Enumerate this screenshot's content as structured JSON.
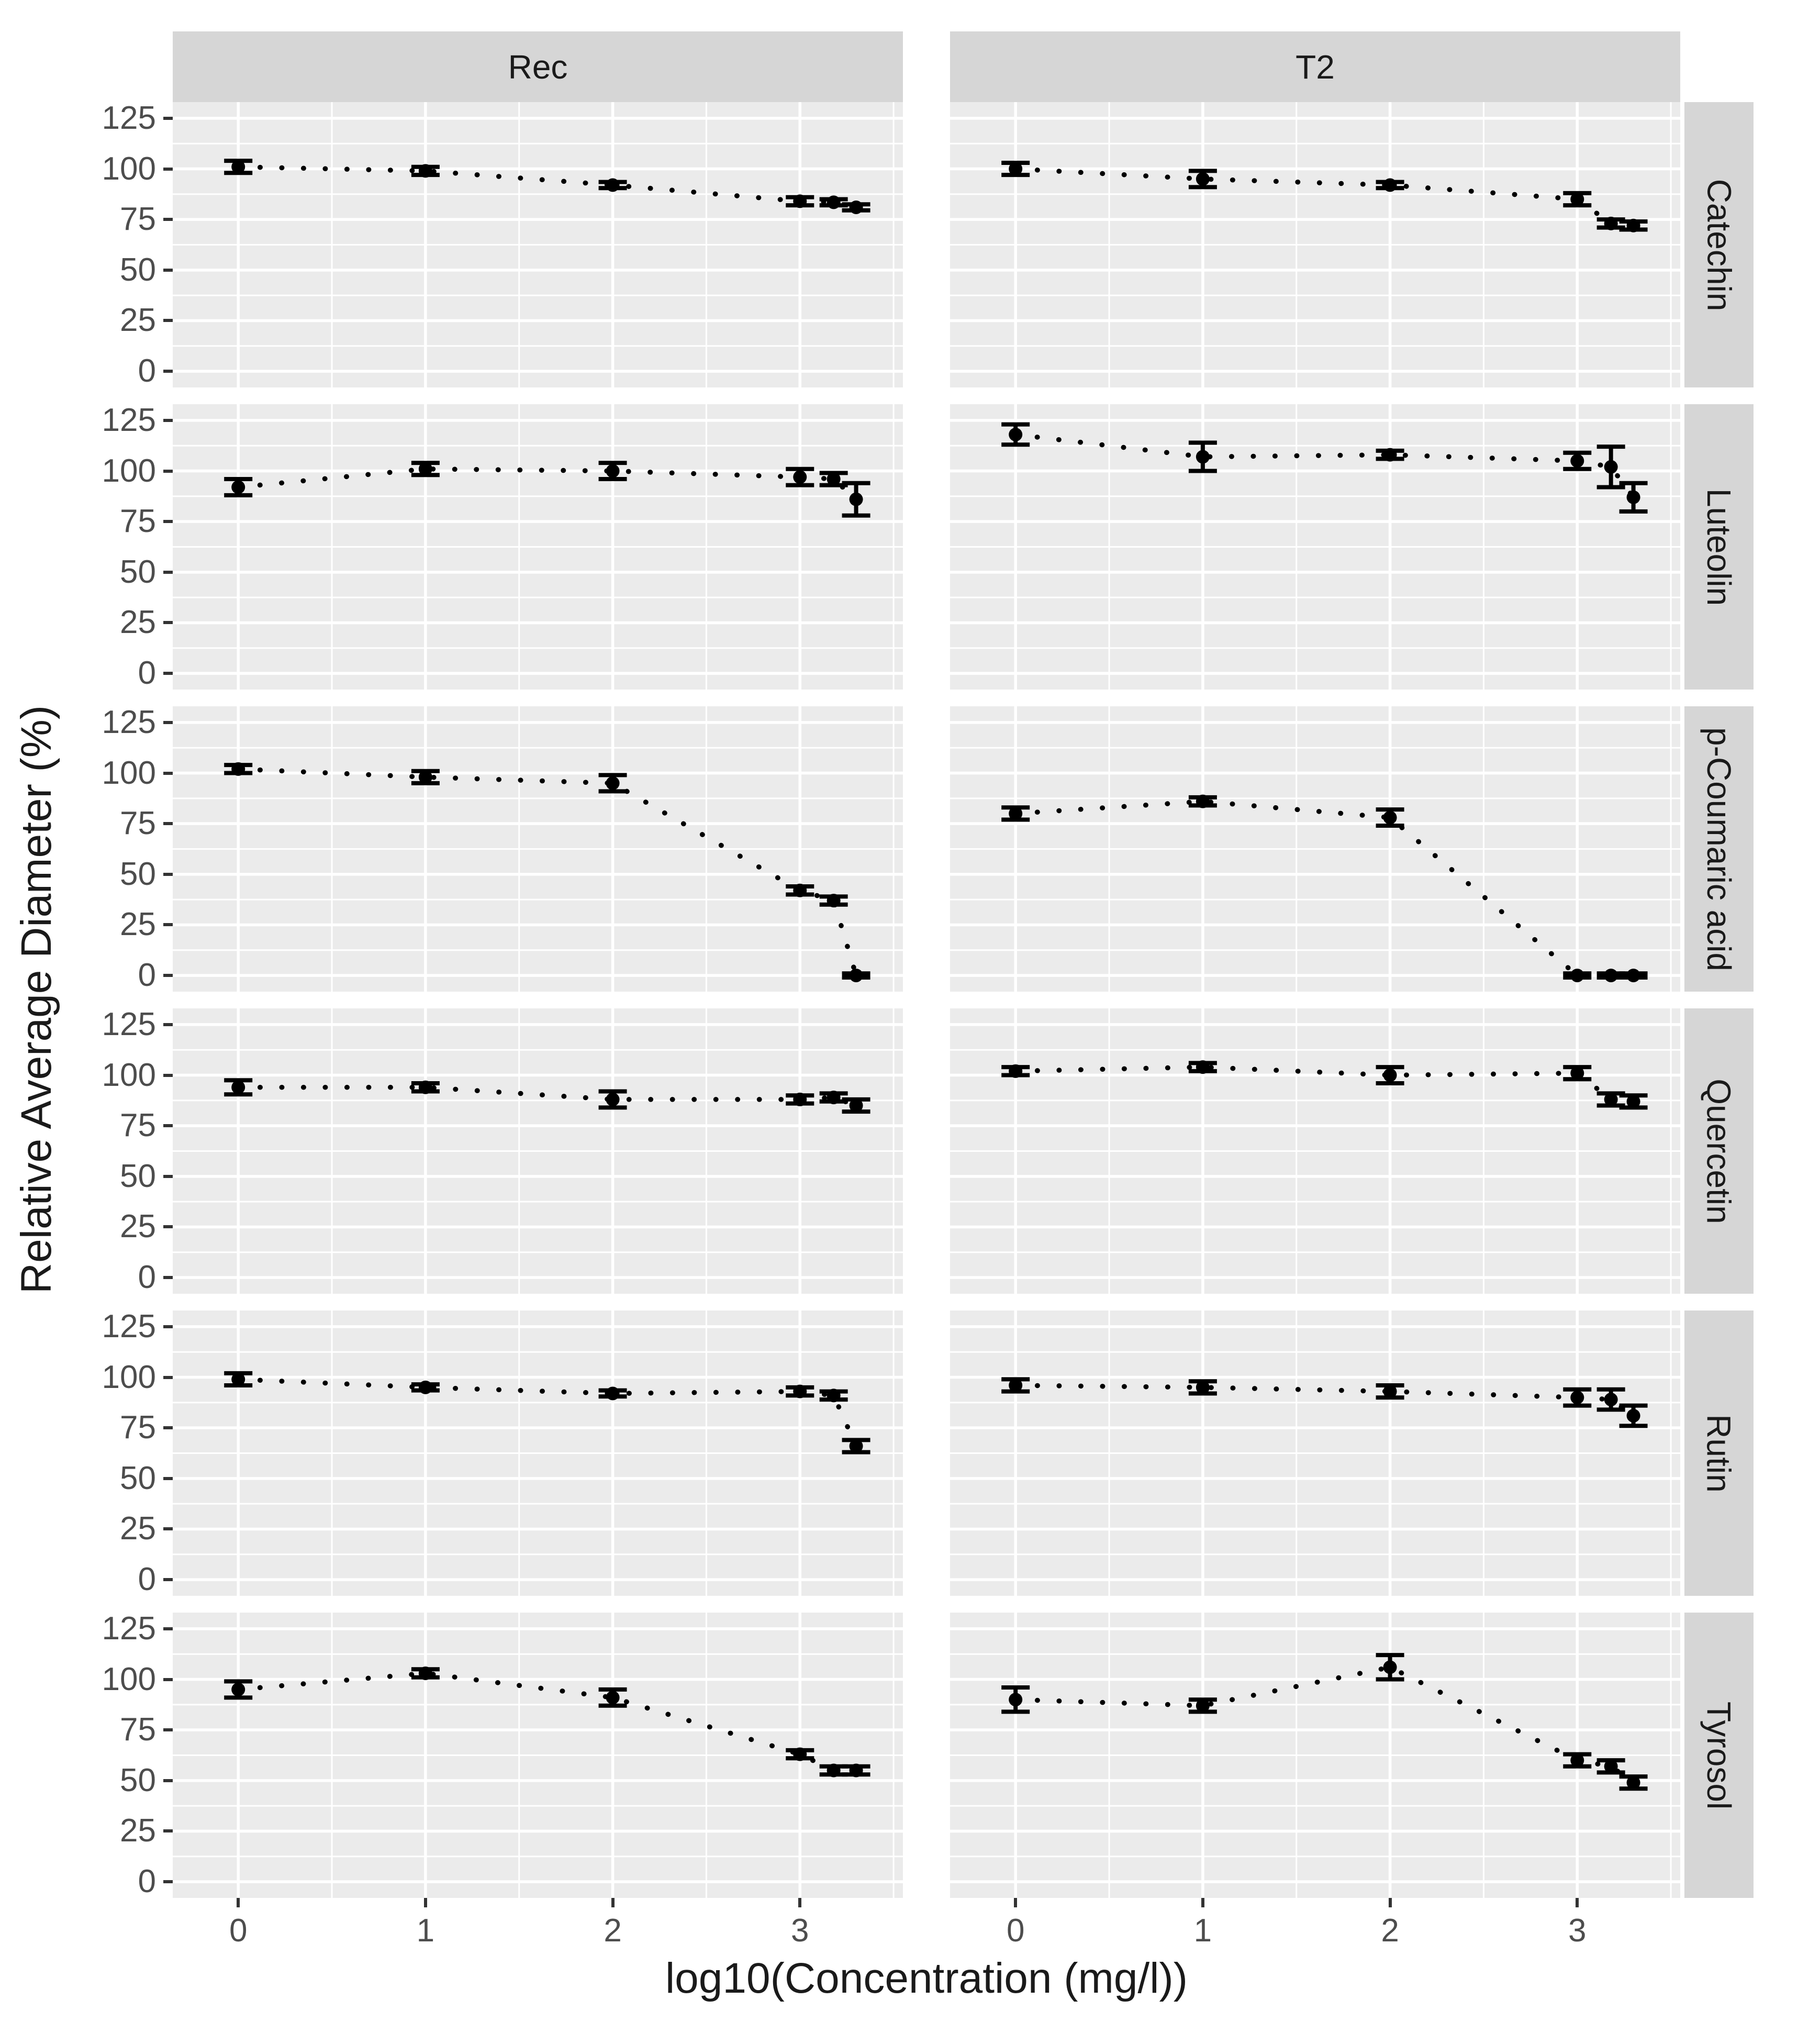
{
  "chart_data": {
    "type": "scatter",
    "subtype": "faceted-points-with-errorbars-dotted-line",
    "title": "",
    "xlabel": "log10(Concentration (mg/l))",
    "ylabel": "Relative Average Diameter (%)",
    "legend": "none",
    "grid": "white major and minor gridlines on gray panels",
    "facet_cols": [
      "Rec",
      "T2"
    ],
    "facet_rows": [
      "Catechin",
      "Luteolin",
      "p-Coumaric acid",
      "Quercetin",
      "Rutin",
      "Tyrosol"
    ],
    "x": [
      0,
      1,
      2,
      3,
      3.18,
      3.3
    ],
    "x_ticks": [
      0,
      1,
      2,
      3
    ],
    "x_minor": [
      0.5,
      1.5,
      2.5,
      3.5
    ],
    "y_ticks": [
      0,
      25,
      50,
      75,
      100,
      125
    ],
    "y_minor": [
      12.5,
      37.5,
      62.5,
      87.5,
      112.5
    ],
    "xlim": [
      -0.35,
      3.55
    ],
    "ylim": [
      -8,
      133
    ],
    "panels": [
      {
        "row": "Catechin",
        "col": "Rec",
        "values": [
          101,
          99,
          92,
          84,
          83.5,
          81
        ],
        "errors": [
          3,
          2,
          1.5,
          2,
          1.5,
          1.5
        ]
      },
      {
        "row": "Catechin",
        "col": "T2",
        "values": [
          100,
          95,
          92,
          85,
          73,
          72
        ],
        "errors": [
          3,
          4,
          1.5,
          3,
          2,
          2
        ]
      },
      {
        "row": "Luteolin",
        "col": "Rec",
        "values": [
          92,
          101,
          100,
          97,
          96,
          86
        ],
        "errors": [
          4,
          3,
          4,
          4,
          3,
          8
        ]
      },
      {
        "row": "Luteolin",
        "col": "T2",
        "values": [
          118,
          107,
          108,
          105,
          102,
          87
        ],
        "errors": [
          5,
          7,
          2,
          4,
          10,
          7
        ]
      },
      {
        "row": "p-Coumaric acid",
        "col": "Rec",
        "values": [
          102,
          98,
          95,
          42,
          37,
          0
        ],
        "errors": [
          2,
          3,
          4,
          2,
          2,
          1
        ]
      },
      {
        "row": "p-Coumaric acid",
        "col": "T2",
        "values": [
          80,
          86,
          78,
          0,
          0,
          0
        ],
        "errors": [
          3,
          2,
          4,
          1,
          1,
          1
        ]
      },
      {
        "row": "Quercetin",
        "col": "Rec",
        "values": [
          94,
          94,
          88,
          88,
          89,
          85
        ],
        "errors": [
          3.5,
          2,
          4,
          2,
          2,
          3
        ]
      },
      {
        "row": "Quercetin",
        "col": "T2",
        "values": [
          102,
          104,
          100,
          101,
          88,
          87
        ],
        "errors": [
          2,
          2,
          4,
          3,
          3,
          3
        ]
      },
      {
        "row": "Rutin",
        "col": "Rec",
        "values": [
          99,
          95,
          92,
          93,
          91,
          66
        ],
        "errors": [
          3,
          1.5,
          1.5,
          2,
          2,
          3
        ]
      },
      {
        "row": "Rutin",
        "col": "T2",
        "values": [
          96,
          95,
          93,
          90,
          89,
          81
        ],
        "errors": [
          3,
          3,
          3,
          4,
          5,
          5
        ]
      },
      {
        "row": "Tyrosol",
        "col": "Rec",
        "values": [
          95,
          103,
          91,
          63,
          55,
          55
        ],
        "errors": [
          4,
          2,
          4,
          2,
          2,
          2
        ]
      },
      {
        "row": "Tyrosol",
        "col": "T2",
        "values": [
          90,
          87,
          106,
          60,
          57,
          49
        ],
        "errors": [
          6,
          3,
          6,
          3,
          3,
          3
        ]
      }
    ],
    "style": {
      "background": "#ffffff",
      "panel_bg": "#ebebeb",
      "strip_bg": "#d6d6d6",
      "grid_color": "#ffffff",
      "data_color": "#000000",
      "tick_label_color": "#4d4d4d",
      "title_color": "#1a1a1a",
      "tick_mark_color": "#333333"
    }
  }
}
